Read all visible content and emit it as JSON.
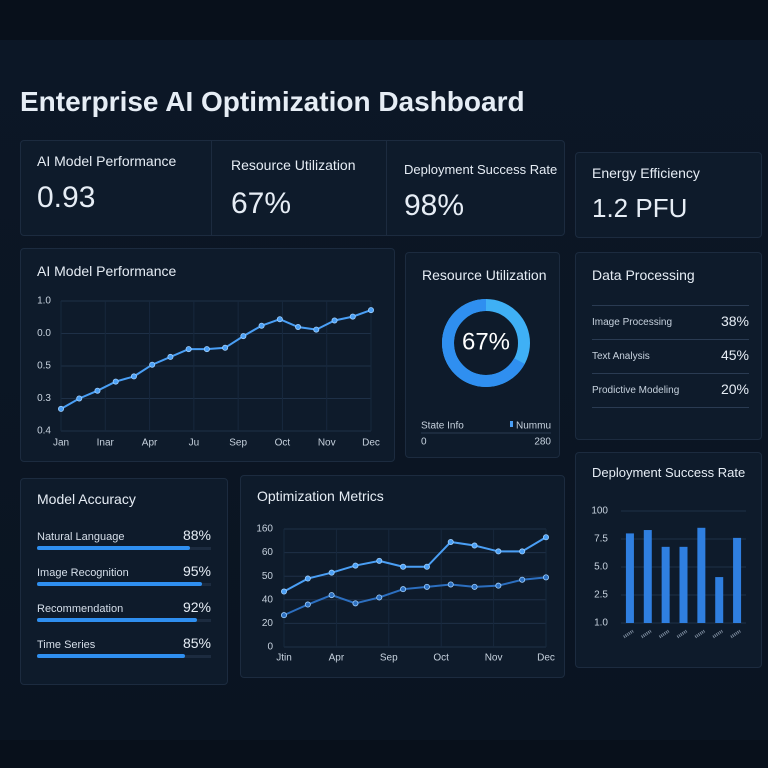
{
  "title": "Enterprise AI Optimization Dashboard",
  "kpis": [
    {
      "label": "AI Model Performance",
      "value": "0.93"
    },
    {
      "label": "Resource Utilization",
      "value": "67%"
    },
    {
      "label": "Deployment Success Rate",
      "value": "98%"
    },
    {
      "label": "Energy Efficiency",
      "value": "1.2 PFU"
    }
  ],
  "performance_chart": {
    "type": "line",
    "title": "AI Model Performance",
    "categories": [
      "Jan",
      "Inar",
      "Apr",
      "Ju",
      "Sep",
      "Oct",
      "Nov",
      "Dec"
    ],
    "y_labels": [
      "1.0",
      "0.0",
      "0.5",
      "0.3",
      "0.4"
    ],
    "ylim": [
      0,
      1
    ],
    "color": "#4a9ff5",
    "values": [
      0.17,
      0.25,
      0.31,
      0.38,
      0.42,
      0.51,
      0.57,
      0.63,
      0.63,
      0.64,
      0.73,
      0.81,
      0.86,
      0.8,
      0.78,
      0.85,
      0.88,
      0.93
    ]
  },
  "resource_panel": {
    "type": "pie",
    "title": "Resource Utilization",
    "center_label": "67%",
    "value": 67,
    "color": "#2f8ff0",
    "legend": [
      "State Info",
      "Nummu"
    ],
    "scale": [
      "0",
      "280"
    ]
  },
  "data_processing": {
    "title": "Data Processing",
    "rows": [
      {
        "label": "Image Processing",
        "value": "38%"
      },
      {
        "label": "Text Analysis",
        "value": "45%"
      },
      {
        "label": "Prodictive Modeling",
        "value": "20%"
      }
    ]
  },
  "model_accuracy": {
    "title": "Model Accuracy",
    "color": "#2f8ff0",
    "rows": [
      {
        "label": "Natural Language",
        "value": 88,
        "value_label": "88%"
      },
      {
        "label": "Image Recognition",
        "value": 95,
        "value_label": "95%"
      },
      {
        "label": "Recommendation",
        "value": 92,
        "value_label": "92%"
      },
      {
        "label": "Time Series",
        "value": 85,
        "value_label": "85%"
      }
    ]
  },
  "optimization_chart": {
    "type": "line",
    "title": "Optimization Metrics",
    "categories": [
      "Jtin",
      "Apr",
      "Sep",
      "Oct",
      "Nov",
      "Dec"
    ],
    "y_labels": [
      "160",
      "60",
      "50",
      "40",
      "20",
      "0"
    ],
    "ylim": [
      0,
      1
    ],
    "series": [
      {
        "color": "#4a9ff5",
        "values": [
          0.47,
          0.58,
          0.63,
          0.69,
          0.73,
          0.68,
          0.68,
          0.89,
          0.86,
          0.81,
          0.81,
          0.93
        ]
      },
      {
        "color": "#2c6fc0",
        "values": [
          0.27,
          0.36,
          0.44,
          0.37,
          0.42,
          0.49,
          0.51,
          0.53,
          0.51,
          0.52,
          0.57,
          0.59
        ]
      }
    ]
  },
  "deployment_chart": {
    "type": "bar",
    "title": "Deployment Success Rate",
    "y_labels": [
      "100",
      "7.5",
      "5.0",
      "2.5",
      "1.0"
    ],
    "ylim": [
      0,
      1
    ],
    "color": "#2f7fe0",
    "values": [
      0.8,
      0.83,
      0.68,
      0.68,
      0.85,
      0.41,
      0.76
    ]
  }
}
